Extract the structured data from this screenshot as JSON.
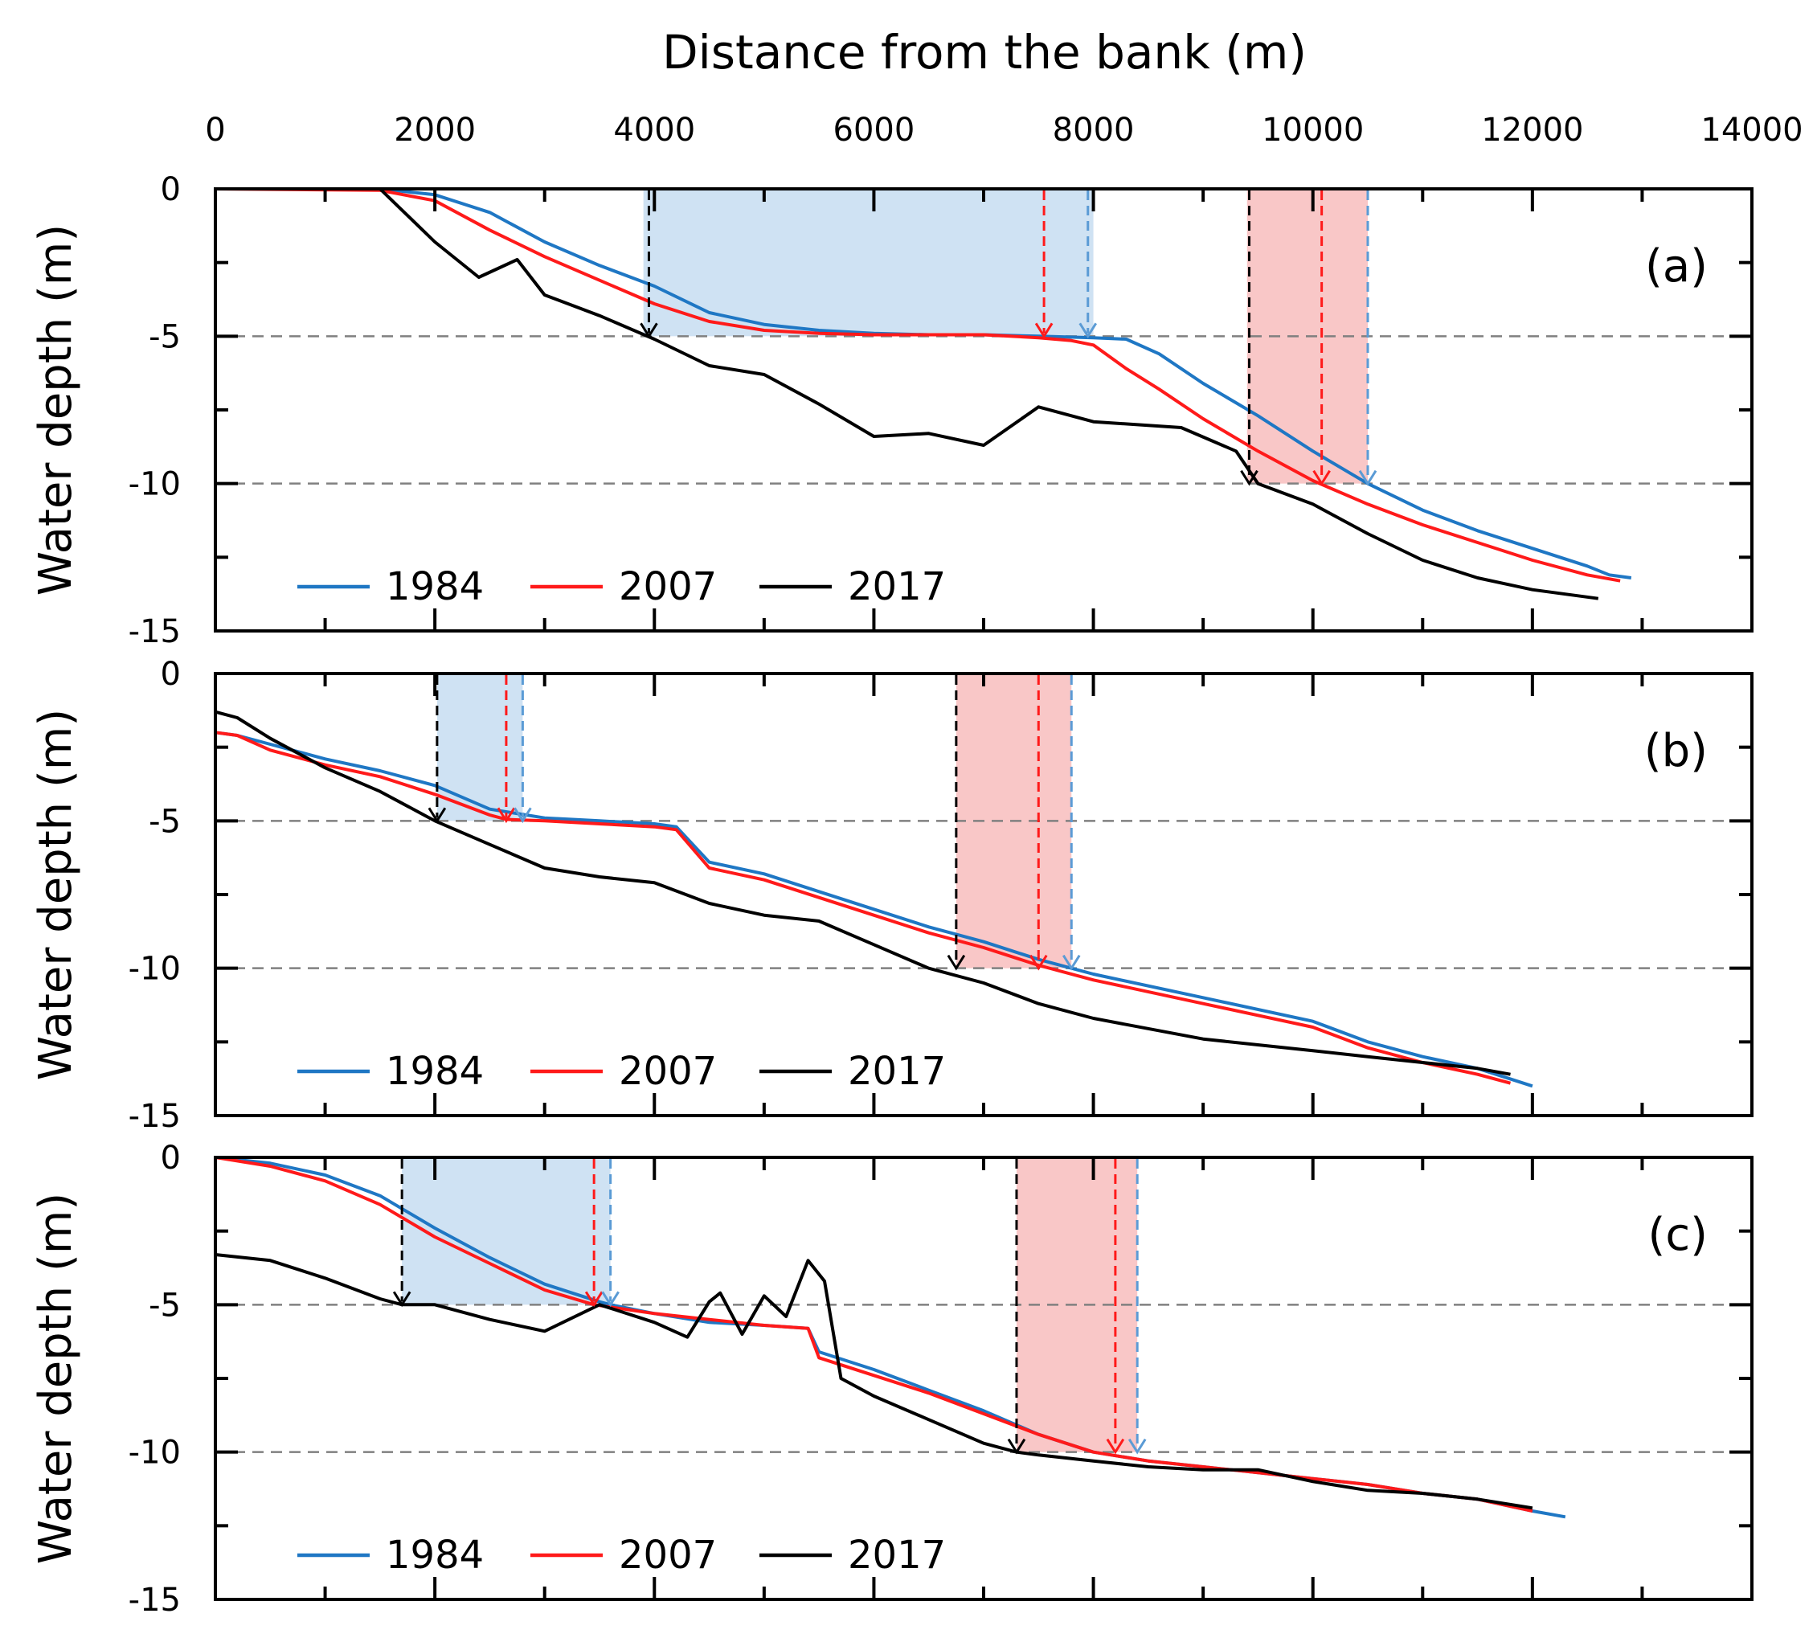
{
  "figure": {
    "xlabel": "Distance from the bank (m)",
    "ylabel": "Water depth (m)",
    "x_ticks": [
      "0",
      "2000",
      "4000",
      "6000",
      "8000",
      "10000",
      "12000",
      "14000"
    ],
    "y_ticks": [
      "0",
      "-5",
      "-10",
      "-15"
    ],
    "legend": [
      "1984",
      "2007",
      "2017"
    ]
  },
  "colors": {
    "1984": "#1f77c4",
    "2007": "#ff1a1a",
    "2017": "#000000",
    "blue_zone": "#cfe2f3",
    "red_zone": "#f9c7c7",
    "ref_line": "#808080",
    "arrow_1984": "#5b9bd5",
    "arrow_2007": "#ff1a1a",
    "arrow_2017": "#000000"
  },
  "chart_data": [
    {
      "type": "line",
      "panel": "(a)",
      "xlim": [
        0,
        14000
      ],
      "ylim": [
        -15,
        0
      ],
      "reference_lines": [
        -5,
        -10
      ],
      "series": [
        {
          "name": "1984",
          "x": [
            0,
            1500,
            2000,
            2500,
            3000,
            3500,
            4000,
            4500,
            5000,
            5500,
            6000,
            6500,
            7000,
            7500,
            8000,
            8300,
            8600,
            9000,
            9500,
            10000,
            10500,
            11000,
            11500,
            12000,
            12500,
            12700,
            12900
          ],
          "y": [
            0,
            0,
            -0.2,
            -0.8,
            -1.8,
            -2.6,
            -3.3,
            -4.2,
            -4.6,
            -4.8,
            -4.9,
            -4.95,
            -4.95,
            -5.0,
            -5.05,
            -5.1,
            -5.6,
            -6.6,
            -7.7,
            -8.9,
            -10.0,
            -10.9,
            -11.6,
            -12.2,
            -12.8,
            -13.1,
            -13.2
          ]
        },
        {
          "name": "2007",
          "x": [
            0,
            1500,
            2000,
            2500,
            3000,
            3500,
            4000,
            4500,
            5000,
            5500,
            6000,
            6500,
            7000,
            7500,
            7800,
            8000,
            8300,
            8600,
            9000,
            9500,
            10000,
            10500,
            11000,
            11500,
            12000,
            12500,
            12800
          ],
          "y": [
            0,
            -0.05,
            -0.4,
            -1.4,
            -2.3,
            -3.1,
            -3.9,
            -4.5,
            -4.8,
            -4.9,
            -4.95,
            -4.95,
            -4.95,
            -5.05,
            -5.15,
            -5.3,
            -6.1,
            -6.8,
            -7.8,
            -8.9,
            -9.9,
            -10.7,
            -11.4,
            -12.0,
            -12.6,
            -13.1,
            -13.3
          ]
        },
        {
          "name": "2017",
          "x": [
            0,
            1500,
            2000,
            2400,
            2750,
            3000,
            3500,
            4000,
            4500,
            5000,
            5500,
            6000,
            6500,
            7000,
            7500,
            8000,
            8800,
            9300,
            9500,
            10000,
            10500,
            11000,
            11500,
            12000,
            12600
          ],
          "y": [
            0,
            0,
            -1.8,
            -3.0,
            -2.4,
            -3.6,
            -4.3,
            -5.1,
            -6.0,
            -6.3,
            -7.3,
            -8.4,
            -8.3,
            -8.7,
            -7.4,
            -7.9,
            -8.1,
            -8.9,
            -10.0,
            -10.7,
            -11.7,
            -12.6,
            -13.2,
            -13.6,
            -13.9
          ]
        }
      ],
      "zones": [
        {
          "color": "blue",
          "x_start": 3900,
          "x_end": 8000,
          "depth": -5
        },
        {
          "color": "red",
          "x_start": 9400,
          "x_end": 10500,
          "depth": -10
        }
      ],
      "arrows": [
        {
          "series": "2017",
          "x": 3950,
          "depth": -5
        },
        {
          "series": "2007",
          "x": 7550,
          "depth": -5
        },
        {
          "series": "1984",
          "x": 7950,
          "depth": -5
        },
        {
          "series": "2017",
          "x": 9420,
          "depth": -10
        },
        {
          "series": "2007",
          "x": 10080,
          "depth": -10
        },
        {
          "series": "1984",
          "x": 10500,
          "depth": -10
        }
      ]
    },
    {
      "type": "line",
      "panel": "(b)",
      "xlim": [
        0,
        14000
      ],
      "ylim": [
        -15,
        0
      ],
      "reference_lines": [
        -5,
        -10
      ],
      "series": [
        {
          "name": "1984",
          "x": [
            0,
            200,
            500,
            1000,
            1500,
            2000,
            2500,
            3000,
            3500,
            4000,
            4200,
            4500,
            5000,
            5500,
            6000,
            6500,
            7000,
            7500,
            7800,
            8000,
            9000,
            10000,
            10500,
            11000,
            11500,
            12000
          ],
          "y": [
            -2,
            -2.1,
            -2.4,
            -2.9,
            -3.3,
            -3.8,
            -4.6,
            -4.9,
            -5.0,
            -5.1,
            -5.2,
            -6.4,
            -6.8,
            -7.4,
            -8.0,
            -8.6,
            -9.1,
            -9.7,
            -10.0,
            -10.2,
            -11.0,
            -11.8,
            -12.5,
            -13.0,
            -13.4,
            -14.0
          ]
        },
        {
          "name": "2007",
          "x": [
            0,
            200,
            500,
            1000,
            1500,
            2000,
            2500,
            2650,
            3000,
            3500,
            4000,
            4200,
            4500,
            5000,
            5500,
            6000,
            6500,
            7000,
            7500,
            8000,
            9000,
            10000,
            10500,
            11000,
            11500,
            11800
          ],
          "y": [
            -2,
            -2.1,
            -2.6,
            -3.1,
            -3.5,
            -4.1,
            -4.8,
            -4.95,
            -5.0,
            -5.1,
            -5.2,
            -5.3,
            -6.6,
            -7.0,
            -7.6,
            -8.2,
            -8.8,
            -9.3,
            -9.9,
            -10.4,
            -11.2,
            -12.0,
            -12.7,
            -13.2,
            -13.6,
            -13.9
          ]
        },
        {
          "name": "2017",
          "x": [
            0,
            200,
            500,
            1000,
            1500,
            2000,
            2500,
            3000,
            3500,
            4000,
            4500,
            5000,
            5500,
            6000,
            6500,
            7000,
            7500,
            8000,
            9000,
            10000,
            10500,
            11000,
            11500,
            11800
          ],
          "y": [
            -1.3,
            -1.5,
            -2.2,
            -3.2,
            -4.0,
            -5.0,
            -5.8,
            -6.6,
            -6.9,
            -7.1,
            -7.8,
            -8.2,
            -8.4,
            -9.2,
            -10.0,
            -10.5,
            -11.2,
            -11.7,
            -12.4,
            -12.8,
            -13.0,
            -13.2,
            -13.4,
            -13.6
          ]
        }
      ],
      "zones": [
        {
          "color": "blue",
          "x_start": 2020,
          "x_end": 2800,
          "depth": -5
        },
        {
          "color": "red",
          "x_start": 6750,
          "x_end": 7800,
          "depth": -10
        }
      ],
      "arrows": [
        {
          "series": "2017",
          "x": 2020,
          "depth": -5
        },
        {
          "series": "2007",
          "x": 2650,
          "depth": -5
        },
        {
          "series": "1984",
          "x": 2800,
          "depth": -5
        },
        {
          "series": "2017",
          "x": 6750,
          "depth": -10
        },
        {
          "series": "2007",
          "x": 7500,
          "depth": -10
        },
        {
          "series": "1984",
          "x": 7800,
          "depth": -10
        }
      ]
    },
    {
      "type": "line",
      "panel": "(c)",
      "xlim": [
        0,
        14000
      ],
      "ylim": [
        -15,
        0
      ],
      "reference_lines": [
        -5,
        -10
      ],
      "series": [
        {
          "name": "1984",
          "x": [
            0,
            500,
            1000,
            1500,
            2000,
            2500,
            3000,
            3500,
            3600,
            4000,
            4500,
            5000,
            5400,
            5500,
            6000,
            6500,
            7000,
            7500,
            8000,
            8500,
            9000,
            9500,
            10000,
            10500,
            11000,
            11500,
            12000,
            12300
          ],
          "y": [
            0,
            -0.2,
            -0.6,
            -1.3,
            -2.4,
            -3.4,
            -4.3,
            -4.9,
            -5.0,
            -5.3,
            -5.6,
            -5.7,
            -5.8,
            -6.6,
            -7.2,
            -7.9,
            -8.6,
            -9.4,
            -10.0,
            -10.3,
            -10.5,
            -10.7,
            -10.9,
            -11.1,
            -11.4,
            -11.6,
            -12.0,
            -12.2
          ]
        },
        {
          "name": "2007",
          "x": [
            0,
            500,
            1000,
            1500,
            2000,
            2500,
            3000,
            3450,
            4000,
            4500,
            5000,
            5400,
            5500,
            6000,
            6500,
            7000,
            7500,
            8000,
            8500,
            9000,
            9500,
            10000,
            10500,
            11000,
            11500,
            12000
          ],
          "y": [
            0,
            -0.3,
            -0.8,
            -1.6,
            -2.7,
            -3.6,
            -4.5,
            -5.0,
            -5.3,
            -5.5,
            -5.7,
            -5.8,
            -6.8,
            -7.4,
            -8.0,
            -8.7,
            -9.4,
            -10.0,
            -10.3,
            -10.5,
            -10.7,
            -10.9,
            -11.1,
            -11.4,
            -11.6,
            -12.0
          ]
        },
        {
          "name": "2017",
          "x": [
            0,
            500,
            1000,
            1500,
            1700,
            2000,
            2500,
            3000,
            3500,
            4000,
            4300,
            4500,
            4600,
            4800,
            5000,
            5200,
            5400,
            5550,
            5700,
            6000,
            6500,
            7000,
            7300,
            7500,
            8000,
            8500,
            9000,
            9500,
            10000,
            10500,
            11000,
            11500,
            12000
          ],
          "y": [
            -3.3,
            -3.5,
            -4.1,
            -4.8,
            -5.0,
            -5.0,
            -5.5,
            -5.9,
            -5.0,
            -5.6,
            -6.1,
            -4.9,
            -4.6,
            -6.0,
            -4.7,
            -5.4,
            -3.5,
            -4.2,
            -7.5,
            -8.1,
            -8.9,
            -9.7,
            -10.0,
            -10.1,
            -10.3,
            -10.5,
            -10.6,
            -10.6,
            -11.0,
            -11.3,
            -11.4,
            -11.6,
            -11.9
          ]
        }
      ],
      "zones": [
        {
          "color": "blue",
          "x_start": 1700,
          "x_end": 3600,
          "depth": -5
        },
        {
          "color": "red",
          "x_start": 7300,
          "x_end": 8400,
          "depth": -10
        }
      ],
      "arrows": [
        {
          "series": "2017",
          "x": 1700,
          "depth": -5
        },
        {
          "series": "2007",
          "x": 3450,
          "depth": -5
        },
        {
          "series": "1984",
          "x": 3600,
          "depth": -5
        },
        {
          "series": "2017",
          "x": 7300,
          "depth": -10
        },
        {
          "series": "2007",
          "x": 8200,
          "depth": -10
        },
        {
          "series": "1984",
          "x": 8400,
          "depth": -10
        }
      ]
    }
  ]
}
